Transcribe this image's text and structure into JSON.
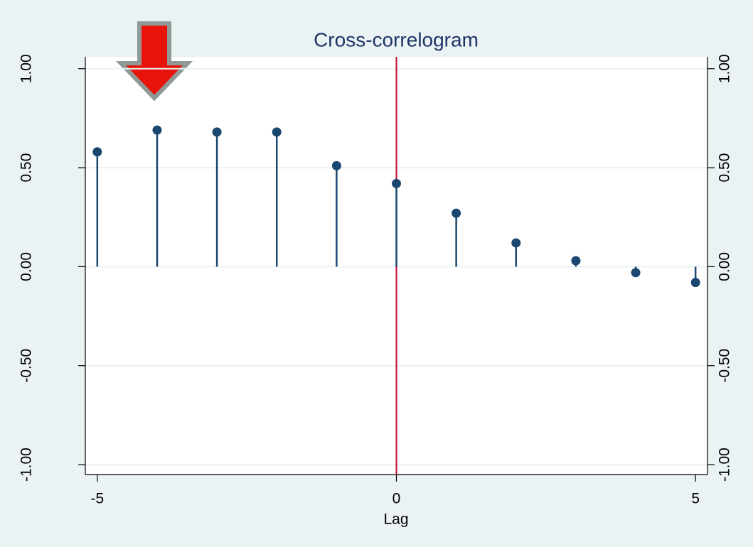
{
  "chart_data": {
    "type": "stem",
    "title": "Cross-correlogram",
    "x_label": "Lag",
    "x": [
      -5,
      -4,
      -3,
      -2,
      -1,
      0,
      1,
      2,
      3,
      4,
      5
    ],
    "values": [
      0.58,
      0.69,
      0.68,
      0.68,
      0.51,
      0.42,
      0.27,
      0.12,
      0.03,
      -0.03,
      -0.08
    ],
    "color": "#1a476f",
    "xlim": [
      -5.2,
      5.2
    ],
    "xticks": [
      -5,
      0,
      5
    ],
    "ylim": [
      -1.05,
      1.06
    ],
    "yticks": [
      {
        "value": -1,
        "label": "-1.00"
      },
      {
        "value": -0.5,
        "label": "-0.50"
      },
      {
        "value": 0,
        "label": "0.00"
      },
      {
        "value": 0.5,
        "label": "0.50"
      },
      {
        "value": 1,
        "label": "1.00"
      }
    ],
    "y2lim": [
      -1.05,
      1.06
    ],
    "y2ticks": [
      {
        "value": -1,
        "label": "-1.00"
      },
      {
        "value": -0.5,
        "label": "-0.50"
      },
      {
        "value": 0,
        "label": "0.00"
      },
      {
        "value": 0.5,
        "label": "0.50"
      },
      {
        "value": 1,
        "label": "1.00"
      }
    ],
    "vline": 0,
    "vline_color": "#c10534",
    "grid": true
  }
}
